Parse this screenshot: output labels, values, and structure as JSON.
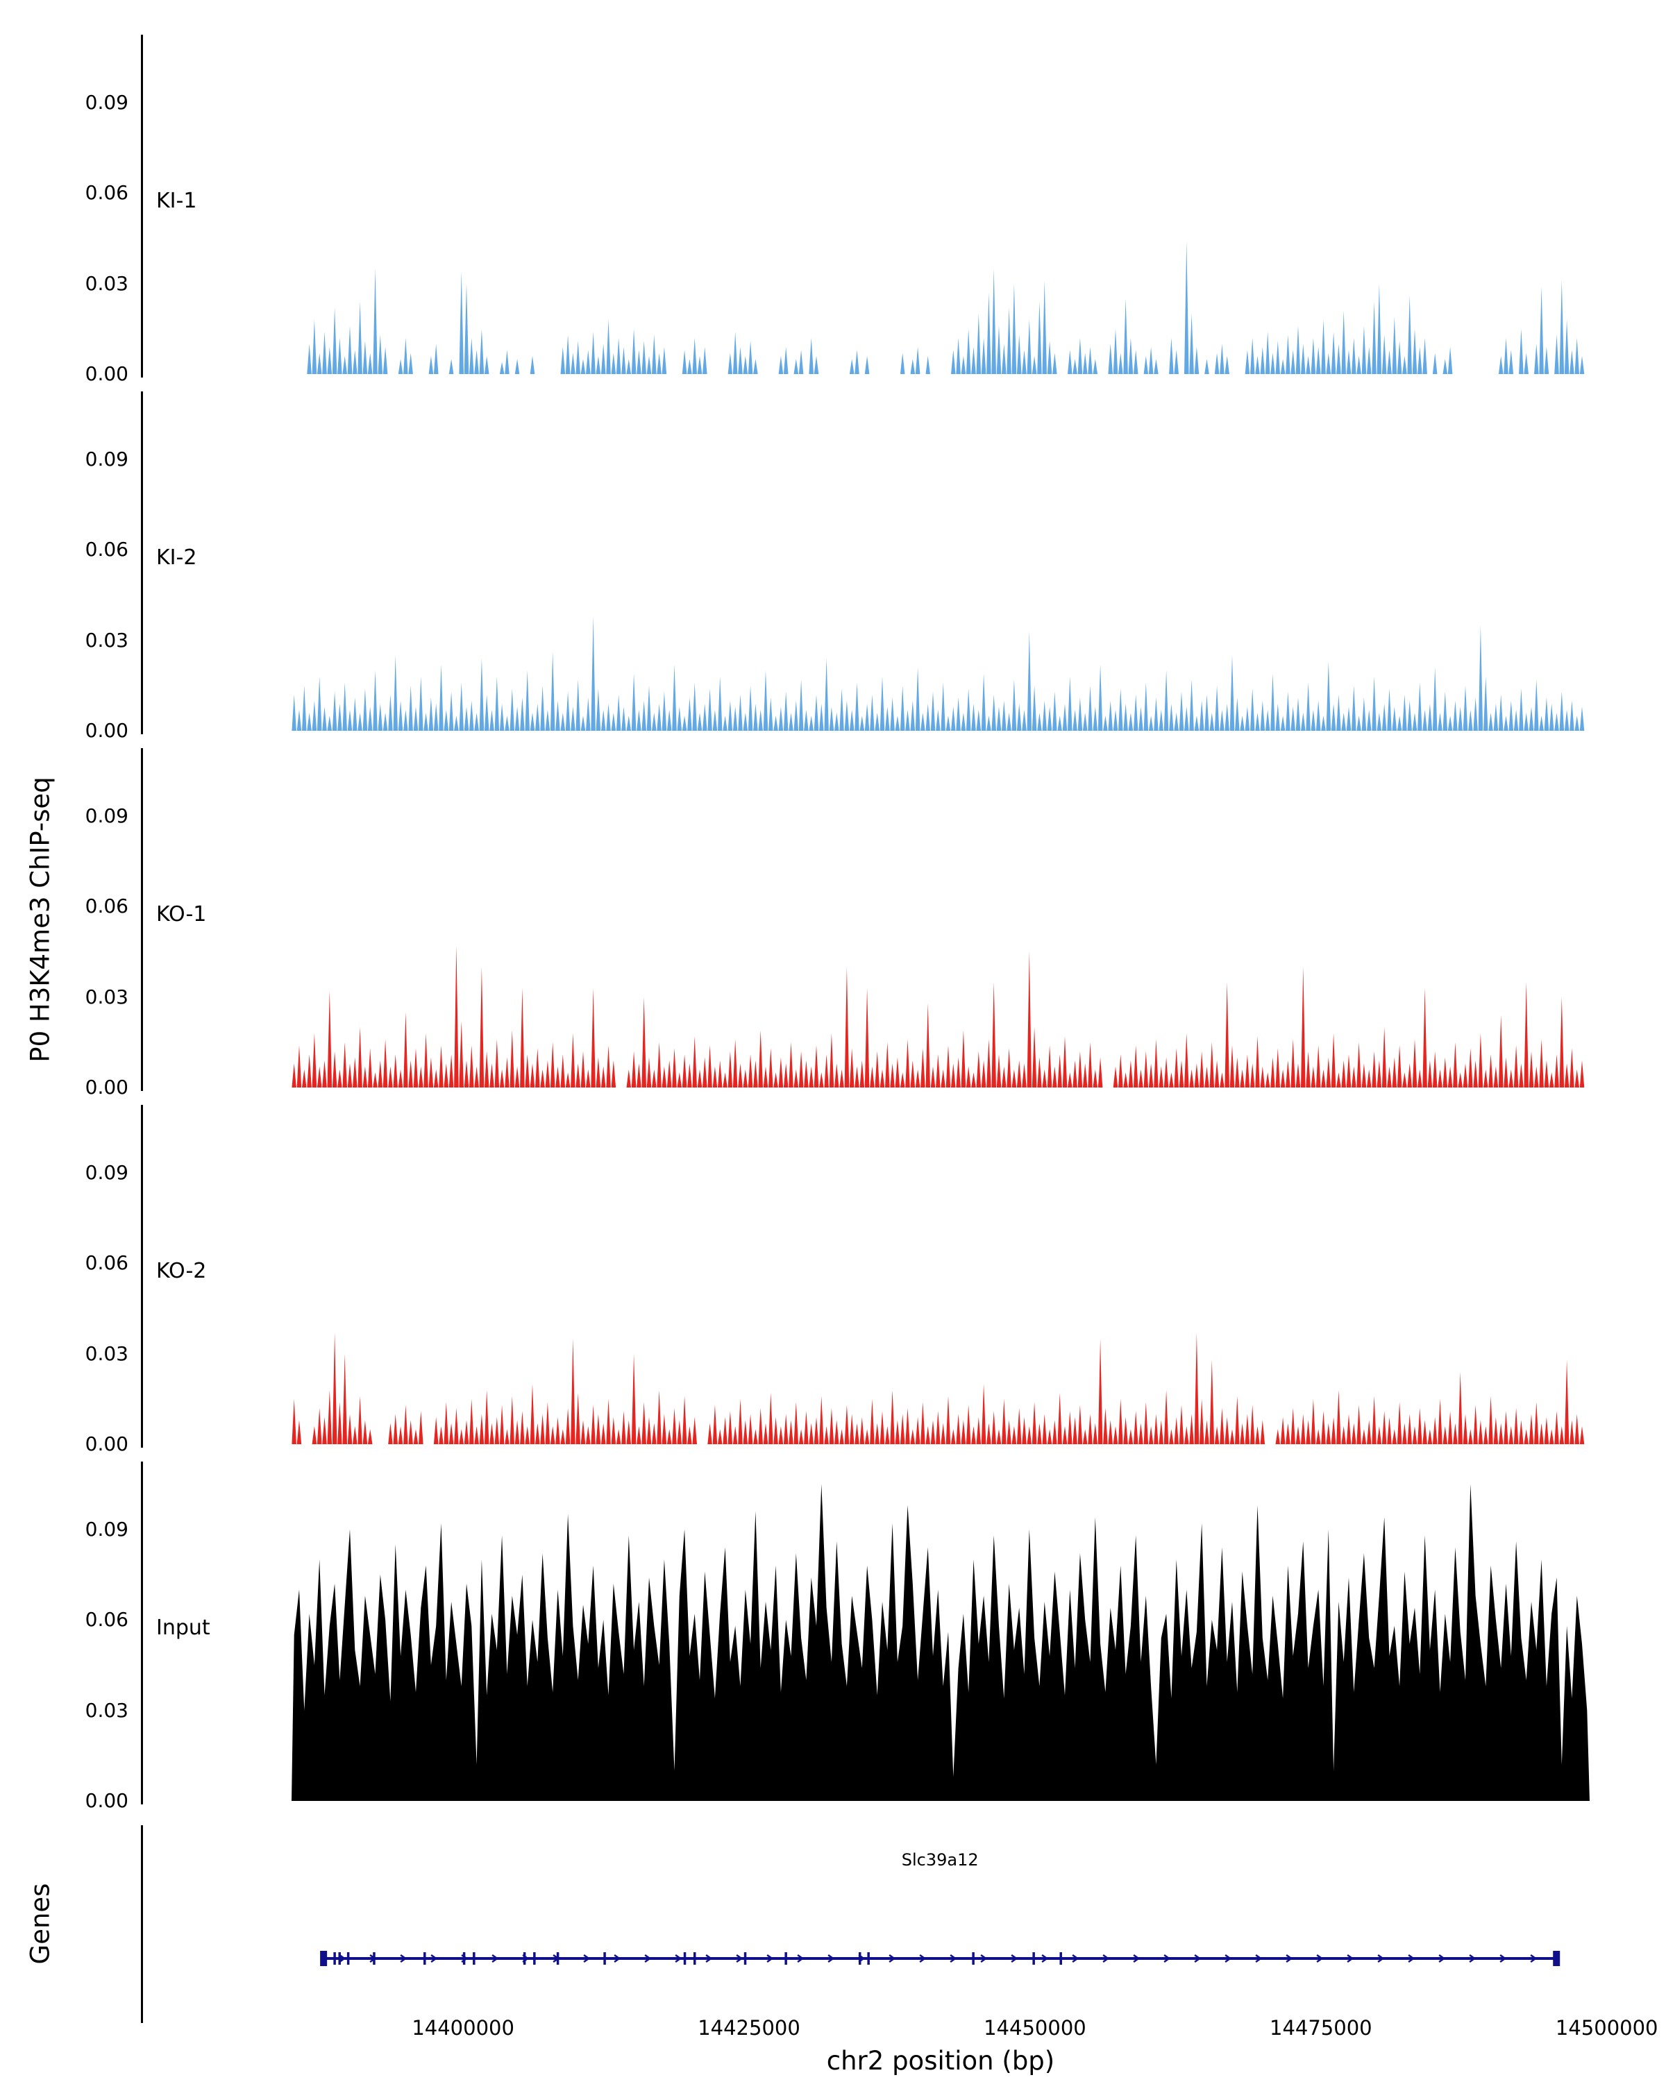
{
  "figure": {
    "y_axis_title": "P0 H3K4me3 ChIP-seq",
    "genes_axis_title": "Genes",
    "x_axis_title": "chr2 position (bp)",
    "gene_label": "Slc39a12"
  },
  "chart_data": {
    "type": "area",
    "title": "",
    "xlabel": "chr2 position (bp)",
    "ylabel": "P0 H3K4me3 ChIP-seq",
    "xlim": [
      14385000,
      14498500
    ],
    "x_ticks": [
      14400000,
      14425000,
      14450000,
      14475000,
      14500000
    ],
    "y_ticks": [
      0,
      0.03,
      0.06,
      0.09
    ],
    "ylim": [
      0,
      0.11
    ],
    "grid": false,
    "legend_position": "none",
    "value_units": "thousandths (value 35 = 0.035)",
    "tracks": [
      {
        "name": "KI-1",
        "color": "#62A8E5",
        "style": "spikes",
        "values": [
          0,
          0,
          0,
          10,
          18,
          7,
          14,
          9,
          22,
          12,
          6,
          16,
          8,
          24,
          11,
          7,
          35,
          13,
          9,
          0,
          0,
          5,
          12,
          7,
          0,
          0,
          0,
          6,
          10,
          0,
          0,
          5,
          0,
          34,
          30,
          12,
          8,
          15,
          6,
          0,
          0,
          4,
          8,
          0,
          5,
          0,
          0,
          6,
          0,
          0,
          0,
          0,
          0,
          9,
          13,
          7,
          11,
          5,
          8,
          14,
          6,
          10,
          18,
          7,
          12,
          9,
          5,
          15,
          8,
          11,
          6,
          13,
          7,
          9,
          0,
          0,
          0,
          8,
          5,
          12,
          6,
          9,
          0,
          0,
          0,
          0,
          7,
          14,
          9,
          6,
          11,
          5,
          0,
          0,
          0,
          0,
          6,
          9,
          0,
          5,
          8,
          0,
          12,
          6,
          0,
          0,
          0,
          0,
          0,
          0,
          5,
          8,
          0,
          6,
          0,
          0,
          0,
          0,
          0,
          0,
          7,
          0,
          5,
          9,
          0,
          6,
          0,
          0,
          0,
          0,
          8,
          12,
          6,
          15,
          9,
          20,
          12,
          27,
          35,
          16,
          10,
          22,
          30,
          13,
          8,
          18,
          6,
          24,
          31,
          11,
          7,
          0,
          0,
          8,
          5,
          12,
          7,
          9,
          5,
          0,
          0,
          10,
          15,
          7,
          25,
          12,
          8,
          0,
          6,
          9,
          5,
          0,
          0,
          12,
          8,
          0,
          44,
          20,
          9,
          0,
          5,
          0,
          7,
          10,
          6,
          0,
          0,
          0,
          8,
          12,
          6,
          9,
          14,
          7,
          11,
          5,
          13,
          8,
          16,
          10,
          6,
          12,
          9,
          18,
          7,
          14,
          10,
          21,
          8,
          12,
          6,
          16,
          9,
          24,
          30,
          13,
          8,
          19,
          11,
          6,
          26,
          15,
          9,
          12,
          0,
          7,
          0,
          5,
          9,
          0,
          0,
          0,
          0,
          0,
          0,
          0,
          0,
          0,
          6,
          12,
          8,
          0,
          15,
          7,
          0,
          10,
          29,
          9,
          0,
          13,
          31,
          18,
          8,
          12,
          6,
          0
        ]
      },
      {
        "name": "KI-2",
        "color": "#62A8E5",
        "style": "spikes",
        "values": [
          12,
          7,
          15,
          6,
          10,
          18,
          8,
          5,
          13,
          9,
          16,
          7,
          11,
          6,
          14,
          8,
          20,
          9,
          6,
          12,
          25,
          10,
          7,
          15,
          8,
          18,
          6,
          11,
          9,
          22,
          7,
          13,
          5,
          16,
          8,
          10,
          6,
          24,
          12,
          7,
          18,
          9,
          5,
          14,
          8,
          11,
          20,
          6,
          9,
          15,
          7,
          26,
          10,
          6,
          13,
          8,
          17,
          5,
          11,
          38,
          14,
          7,
          9,
          6,
          12,
          8,
          5,
          19,
          7,
          10,
          15,
          6,
          9,
          13,
          7,
          22,
          8,
          5,
          11,
          16,
          6,
          9,
          14,
          7,
          18,
          5,
          10,
          8,
          12,
          6,
          15,
          9,
          7,
          20,
          11,
          5,
          8,
          13,
          6,
          10,
          17,
          7,
          5,
          12,
          9,
          24,
          8,
          6,
          14,
          10,
          7,
          16,
          5,
          9,
          12,
          6,
          18,
          8,
          11,
          5,
          15,
          7,
          10,
          21,
          6,
          9,
          13,
          7,
          16,
          5,
          8,
          11,
          6,
          14,
          9,
          7,
          19,
          5,
          12,
          8,
          10,
          6,
          17,
          9,
          7,
          33,
          15,
          6,
          10,
          8,
          13,
          5,
          9,
          18,
          7,
          11,
          6,
          15,
          8,
          22,
          5,
          10,
          7,
          14,
          9,
          6,
          12,
          8,
          16,
          5,
          11,
          7,
          20,
          9,
          6,
          13,
          8,
          17,
          5,
          10,
          12,
          6,
          15,
          7,
          9,
          25,
          11,
          5,
          8,
          14,
          6,
          10,
          7,
          19,
          9,
          5,
          13,
          8,
          11,
          6,
          16,
          7,
          10,
          5,
          23,
          9,
          12,
          6,
          8,
          15,
          5,
          11,
          7,
          18,
          6,
          9,
          14,
          8,
          5,
          12,
          10,
          6,
          16,
          7,
          9,
          21,
          6,
          13,
          5,
          10,
          8,
          15,
          7,
          11,
          35,
          18,
          6,
          9,
          12,
          5,
          10,
          7,
          14,
          6,
          8,
          17,
          5,
          11,
          9,
          6,
          13,
          7,
          10,
          5,
          8,
          0
        ]
      },
      {
        "name": "KO-1",
        "color": "#E62420",
        "style": "spikes",
        "values": [
          8,
          14,
          6,
          11,
          18,
          7,
          9,
          32,
          12,
          6,
          15,
          8,
          10,
          20,
          7,
          13,
          5,
          9,
          16,
          7,
          11,
          6,
          25,
          9,
          13,
          7,
          18,
          10,
          6,
          14,
          8,
          11,
          47,
          22,
          9,
          14,
          7,
          40,
          12,
          8,
          16,
          6,
          10,
          19,
          7,
          33,
          11,
          8,
          13,
          6,
          9,
          15,
          7,
          11,
          5,
          18,
          8,
          12,
          6,
          33,
          10,
          7,
          14,
          9,
          0,
          0,
          6,
          12,
          8,
          30,
          10,
          6,
          15,
          7,
          9,
          13,
          5,
          11,
          8,
          17,
          6,
          10,
          14,
          7,
          9,
          5,
          12,
          16,
          8,
          6,
          11,
          9,
          19,
          7,
          13,
          5,
          10,
          8,
          15,
          6,
          12,
          9,
          7,
          14,
          5,
          11,
          18,
          8,
          6,
          40,
          13,
          7,
          9,
          33,
          7,
          12,
          6,
          15,
          8,
          10,
          5,
          16,
          9,
          6,
          13,
          28,
          7,
          11,
          6,
          14,
          8,
          10,
          19,
          7,
          5,
          12,
          9,
          16,
          35,
          11,
          7,
          13,
          6,
          9,
          8,
          45,
          20,
          10,
          6,
          14,
          7,
          11,
          17,
          5,
          9,
          12,
          8,
          15,
          6,
          10,
          0,
          0,
          7,
          11,
          5,
          9,
          14,
          6,
          12,
          8,
          16,
          7,
          10,
          5,
          13,
          9,
          18,
          6,
          8,
          12,
          7,
          15,
          9,
          5,
          35,
          14,
          10,
          6,
          11,
          8,
          17,
          7,
          5,
          10,
          13,
          6,
          9,
          16,
          8,
          40,
          12,
          7,
          14,
          6,
          10,
          18,
          5,
          9,
          11,
          7,
          15,
          8,
          6,
          12,
          9,
          20,
          7,
          10,
          14,
          5,
          8,
          16,
          6,
          33,
          9,
          12,
          6,
          10,
          7,
          15,
          5,
          8,
          13,
          9,
          18,
          6,
          11,
          7,
          24,
          10,
          6,
          14,
          8,
          35,
          12,
          7,
          16,
          9,
          5,
          11,
          30,
          8,
          13,
          6,
          9,
          0
        ]
      },
      {
        "name": "KO-2",
        "color": "#E62420",
        "style": "spikes",
        "values": [
          15,
          8,
          0,
          0,
          6,
          12,
          9,
          18,
          37,
          14,
          30,
          10,
          6,
          16,
          8,
          5,
          0,
          0,
          0,
          7,
          10,
          6,
          13,
          8,
          5,
          11,
          0,
          0,
          9,
          6,
          14,
          7,
          12,
          5,
          8,
          15,
          6,
          10,
          18,
          7,
          9,
          13,
          5,
          16,
          8,
          11,
          6,
          20,
          7,
          10,
          14,
          6,
          9,
          5,
          12,
          35,
          17,
          8,
          6,
          13,
          10,
          7,
          15,
          9,
          5,
          11,
          8,
          30,
          6,
          14,
          9,
          7,
          18,
          10,
          5,
          12,
          8,
          16,
          6,
          9,
          0,
          0,
          7,
          13,
          5,
          9,
          11,
          6,
          15,
          8,
          10,
          5,
          12,
          7,
          17,
          9,
          6,
          10,
          8,
          14,
          5,
          11,
          7,
          9,
          16,
          6,
          12,
          8,
          5,
          13,
          10,
          7,
          9,
          5,
          15,
          7,
          11,
          6,
          18,
          8,
          10,
          12,
          5,
          9,
          14,
          6,
          8,
          11,
          7,
          16,
          5,
          10,
          8,
          13,
          6,
          9,
          20,
          7,
          11,
          5,
          15,
          8,
          6,
          12,
          9,
          6,
          14,
          7,
          10,
          5,
          8,
          17,
          6,
          11,
          9,
          13,
          5,
          10,
          7,
          35,
          12,
          8,
          6,
          15,
          9,
          5,
          11,
          7,
          14,
          6,
          10,
          8,
          18,
          5,
          9,
          13,
          6,
          10,
          37,
          15,
          8,
          28,
          6,
          12,
          9,
          5,
          16,
          7,
          10,
          13,
          6,
          8,
          0,
          0,
          5,
          9,
          7,
          12,
          6,
          10,
          8,
          15,
          5,
          11,
          7,
          9,
          18,
          6,
          10,
          7,
          13,
          5,
          8,
          16,
          6,
          11,
          9,
          5,
          14,
          7,
          10,
          6,
          12,
          8,
          5,
          9,
          15,
          6,
          11,
          7,
          24,
          10,
          5,
          13,
          8,
          6,
          16,
          9,
          7,
          11,
          6,
          12,
          8,
          5,
          10,
          14,
          7,
          9,
          5,
          11,
          6,
          28,
          8,
          10,
          6,
          0
        ]
      },
      {
        "name": "Input",
        "color": "#000000",
        "style": "area",
        "values": [
          55,
          70,
          30,
          62,
          45,
          80,
          35,
          58,
          72,
          40,
          65,
          90,
          50,
          38,
          68,
          55,
          42,
          75,
          60,
          33,
          85,
          48,
          70,
          55,
          36,
          64,
          78,
          45,
          58,
          92,
          40,
          66,
          52,
          38,
          72,
          58,
          12,
          80,
          35,
          62,
          50,
          88,
          42,
          68,
          55,
          75,
          38,
          60,
          46,
          82,
          54,
          36,
          70,
          48,
          95,
          58,
          40,
          65,
          52,
          78,
          44,
          60,
          35,
          72,
          56,
          42,
          88,
          50,
          66,
          38,
          74,
          58,
          45,
          80,
          52,
          10,
          68,
          90,
          48,
          62,
          40,
          76,
          55,
          34,
          62,
          84,
          46,
          58,
          38,
          70,
          52,
          96,
          44,
          66,
          50,
          78,
          36,
          60,
          48,
          82,
          54,
          40,
          74,
          58,
          105,
          64,
          46,
          86,
          52,
          38,
          68,
          56,
          44,
          78,
          60,
          35,
          66,
          50,
          92,
          46,
          58,
          98,
          72,
          40,
          62,
          84,
          48,
          70,
          38,
          56,
          8,
          44,
          62,
          36,
          80,
          52,
          68,
          46,
          88,
          58,
          34,
          72,
          50,
          64,
          42,
          90,
          54,
          38,
          66,
          48,
          76,
          56,
          35,
          70,
          44,
          82,
          60,
          46,
          94,
          52,
          36,
          64,
          50,
          78,
          42,
          58,
          88,
          46,
          68,
          38,
          12,
          54,
          62,
          34,
          80,
          48,
          70,
          44,
          56,
          92,
          38,
          60,
          50,
          84,
          46,
          66,
          36,
          76,
          58,
          42,
          98,
          54,
          40,
          68,
          52,
          34,
          78,
          48,
          62,
          86,
          44,
          58,
          70,
          38,
          90,
          10,
          66,
          46,
          74,
          36,
          60,
          82,
          54,
          44,
          68,
          94,
          48,
          58,
          38,
          76,
          52,
          64,
          42,
          88,
          50,
          70,
          36,
          62,
          46,
          84,
          56,
          40,
          105,
          68,
          52,
          38,
          78,
          60,
          44,
          72,
          48,
          86,
          54,
          40,
          66,
          50,
          80,
          38,
          62,
          74,
          12,
          58,
          34,
          68,
          52,
          30
        ]
      }
    ],
    "gene": {
      "name": "Slc39a12",
      "strand": "+",
      "start_bp": 14387800,
      "end_bp": 14495600,
      "color": "#10108C",
      "exons_frac": [
        0,
        0.009,
        0.013,
        0.02,
        0.041,
        0.082,
        0.114,
        0.122,
        0.163,
        0.171,
        0.19,
        0.228,
        0.293,
        0.301,
        0.342,
        0.375,
        0.435,
        0.442,
        0.527,
        0.576,
        0.598,
        1
      ]
    }
  }
}
